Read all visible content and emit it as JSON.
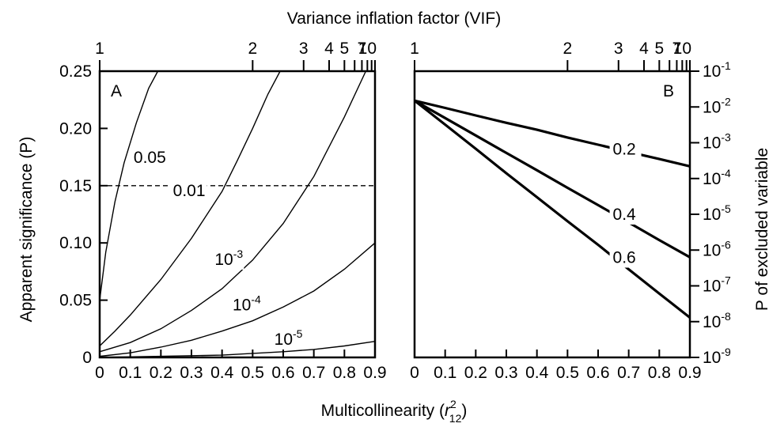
{
  "figure": {
    "top_axis_title": "Variance inflation factor (VIF)",
    "x_axis_title_main": "Multicollinearity (",
    "x_axis_title_var": "r",
    "x_axis_title_sup": "2",
    "x_axis_title_sub": "12",
    "x_axis_title_end": ")"
  },
  "chart_data": [
    {
      "type": "line",
      "panel": "A",
      "xlabel": "Multicollinearity (r²₁₂)",
      "ylabel": "Apparent significance (P)",
      "xlim": [
        0,
        0.9
      ],
      "ylim": [
        0,
        0.25
      ],
      "x_ticks": [
        "0",
        "0.1",
        "0.2",
        "0.3",
        "0.4",
        "0.5",
        "0.6",
        "0.7",
        "0.8",
        "0.9"
      ],
      "y_ticks": [
        "0",
        "0.05",
        "0.10",
        "0.15",
        "0.20",
        "0.25"
      ],
      "top_axis": {
        "label": "Variance inflation factor (VIF)",
        "scale": "log",
        "ticks": [
          "1",
          "2",
          "3",
          "4",
          "5",
          "7",
          "10"
        ]
      },
      "reference_line": {
        "y": 0.15,
        "style": "dashed"
      },
      "series": [
        {
          "name": "0.05",
          "x": [
            0,
            0.02,
            0.05,
            0.08,
            0.12,
            0.16,
            0.19
          ],
          "y": [
            0.05,
            0.092,
            0.136,
            0.17,
            0.205,
            0.235,
            0.25
          ]
        },
        {
          "name": "0.01",
          "x": [
            0,
            0.05,
            0.1,
            0.2,
            0.3,
            0.4,
            0.45,
            0.5,
            0.55,
            0.59
          ],
          "y": [
            0.01,
            0.023,
            0.037,
            0.068,
            0.104,
            0.145,
            0.172,
            0.2,
            0.23,
            0.25
          ]
        },
        {
          "name": "10-3",
          "exponent_label": {
            "base": "10",
            "exp": "-3"
          },
          "x": [
            0,
            0.1,
            0.2,
            0.3,
            0.4,
            0.5,
            0.6,
            0.7,
            0.8,
            0.87
          ],
          "y": [
            0.005,
            0.013,
            0.025,
            0.041,
            0.06,
            0.085,
            0.117,
            0.158,
            0.21,
            0.25
          ]
        },
        {
          "name": "10-4",
          "exponent_label": {
            "base": "10",
            "exp": "-4"
          },
          "x": [
            0,
            0.1,
            0.2,
            0.3,
            0.4,
            0.5,
            0.6,
            0.7,
            0.8,
            0.9
          ],
          "y": [
            0.001,
            0.004,
            0.009,
            0.015,
            0.023,
            0.032,
            0.044,
            0.058,
            0.077,
            0.1
          ]
        },
        {
          "name": "10-5",
          "exponent_label": {
            "base": "10",
            "exp": "-5"
          },
          "x": [
            0,
            0.2,
            0.4,
            0.6,
            0.7,
            0.8,
            0.9
          ],
          "y": [
            0,
            0.001,
            0.002,
            0.005,
            0.007,
            0.01,
            0.014
          ]
        }
      ]
    },
    {
      "type": "line",
      "panel": "B",
      "xlabel": "Multicollinearity (r²₁₂)",
      "ylabel": "P of excluded variable",
      "xlim": [
        0,
        0.9
      ],
      "ylim": [
        1e-09,
        0.1
      ],
      "yscale": "log",
      "x_ticks": [
        "0",
        "0.1",
        "0.2",
        "0.3",
        "0.4",
        "0.5",
        "0.6",
        "0.7",
        "0.8",
        "0.9"
      ],
      "y_ticks": [
        {
          "base": "10",
          "exp": "-1"
        },
        {
          "base": "10",
          "exp": "-2"
        },
        {
          "base": "10",
          "exp": "-3"
        },
        {
          "base": "10",
          "exp": "-4"
        },
        {
          "base": "10",
          "exp": "-5"
        },
        {
          "base": "10",
          "exp": "-6"
        },
        {
          "base": "10",
          "exp": "-7"
        },
        {
          "base": "10",
          "exp": "-8"
        },
        {
          "base": "10",
          "exp": "-9"
        }
      ],
      "top_axis": {
        "label": "Variance inflation factor (VIF)",
        "scale": "log",
        "ticks": [
          "1",
          "2",
          "3",
          "4",
          "5",
          "7",
          "10"
        ]
      },
      "series": [
        {
          "name": "0.2",
          "x": [
            0,
            0.1,
            0.2,
            0.3,
            0.4,
            0.5,
            0.6,
            0.7,
            0.8,
            0.9
          ],
          "y": [
            0.015,
            0.0094,
            0.0058,
            0.0036,
            0.0023,
            0.0014,
            0.00088,
            0.00055,
            0.00035,
            0.00022
          ]
        },
        {
          "name": "0.4",
          "x": [
            0,
            0.1,
            0.2,
            0.3,
            0.4,
            0.5,
            0.6,
            0.7,
            0.8,
            0.9
          ],
          "y": [
            0.015,
            0.0049,
            0.0016,
            0.00052,
            0.00017,
            5.5e-05,
            1.8e-05,
            5.9e-06,
            1.9e-06,
            6.3e-07
          ]
        },
        {
          "name": "0.6",
          "x": [
            0,
            0.1,
            0.2,
            0.3,
            0.4,
            0.5,
            0.6,
            0.7,
            0.8,
            0.9
          ],
          "y": [
            0.015,
            0.0032,
            0.00068,
            0.00014,
            3e-05,
            6.4e-06,
            1.4e-06,
            2.9e-07,
            6.1e-08,
            1.3e-08
          ]
        }
      ]
    }
  ]
}
